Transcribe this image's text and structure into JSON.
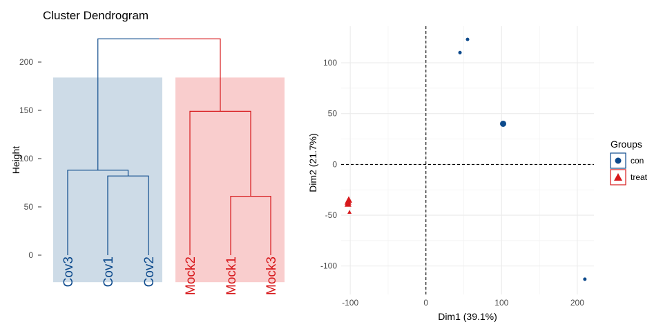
{
  "colors": {
    "con": "#0d4a8c",
    "treat": "#d7191c",
    "con_fill": "#cddbe7",
    "treat_fill": "#f9cdcd"
  },
  "chart_data": [
    {
      "type": "dendrogram",
      "title": "Cluster Dendrogram",
      "xlabel": "",
      "ylabel": "Height",
      "ylim": [
        -28,
        228
      ],
      "yticks": [
        0,
        50,
        100,
        150,
        200
      ],
      "leaves": [
        {
          "label": "Cov3",
          "group": "con"
        },
        {
          "label": "Cov1",
          "group": "con"
        },
        {
          "label": "Cov2",
          "group": "con"
        },
        {
          "label": "Mock2",
          "group": "treat"
        },
        {
          "label": "Mock1",
          "group": "treat"
        },
        {
          "label": "Mock3",
          "group": "treat"
        }
      ],
      "merges": [
        {
          "a": "Cov1",
          "b": "Cov2",
          "height": 82,
          "group": "con"
        },
        {
          "a": "Cov3",
          "b": "Cov1+Cov2",
          "height": 88,
          "group": "con"
        },
        {
          "a": "Mock1",
          "b": "Mock3",
          "height": 61,
          "group": "treat"
        },
        {
          "a": "Mock2",
          "b": "Mock1+Mock3",
          "height": 149,
          "group": "treat"
        },
        {
          "a": "con-cluster",
          "b": "treat-cluster",
          "height": 224,
          "group": "mixed"
        }
      ],
      "cluster_rect_top": 184
    },
    {
      "type": "scatter",
      "title": "",
      "xlabel": "Dim1 (39.1%)",
      "ylabel": "Dim2 (21.7%)",
      "xlim": [
        -112,
        222
      ],
      "ylim": [
        -128,
        136
      ],
      "xticks": [
        -100,
        0,
        100,
        200
      ],
      "yticks": [
        -100,
        -50,
        0,
        50,
        100
      ],
      "grid": true,
      "legend": {
        "title": "Groups",
        "position": "right"
      },
      "series": [
        {
          "name": "con",
          "shape": "circle",
          "points": [
            {
              "x": 55,
              "y": 123
            },
            {
              "x": 45,
              "y": 110
            },
            {
              "x": 102,
              "y": 40
            },
            {
              "x": 210,
              "y": -113
            }
          ]
        },
        {
          "name": "treat",
          "shape": "triangle",
          "points": [
            {
              "x": -102,
              "y": -35
            },
            {
              "x": -103,
              "y": -37
            },
            {
              "x": -103,
              "y": -39
            },
            {
              "x": -101,
              "y": -47
            }
          ]
        }
      ]
    }
  ]
}
